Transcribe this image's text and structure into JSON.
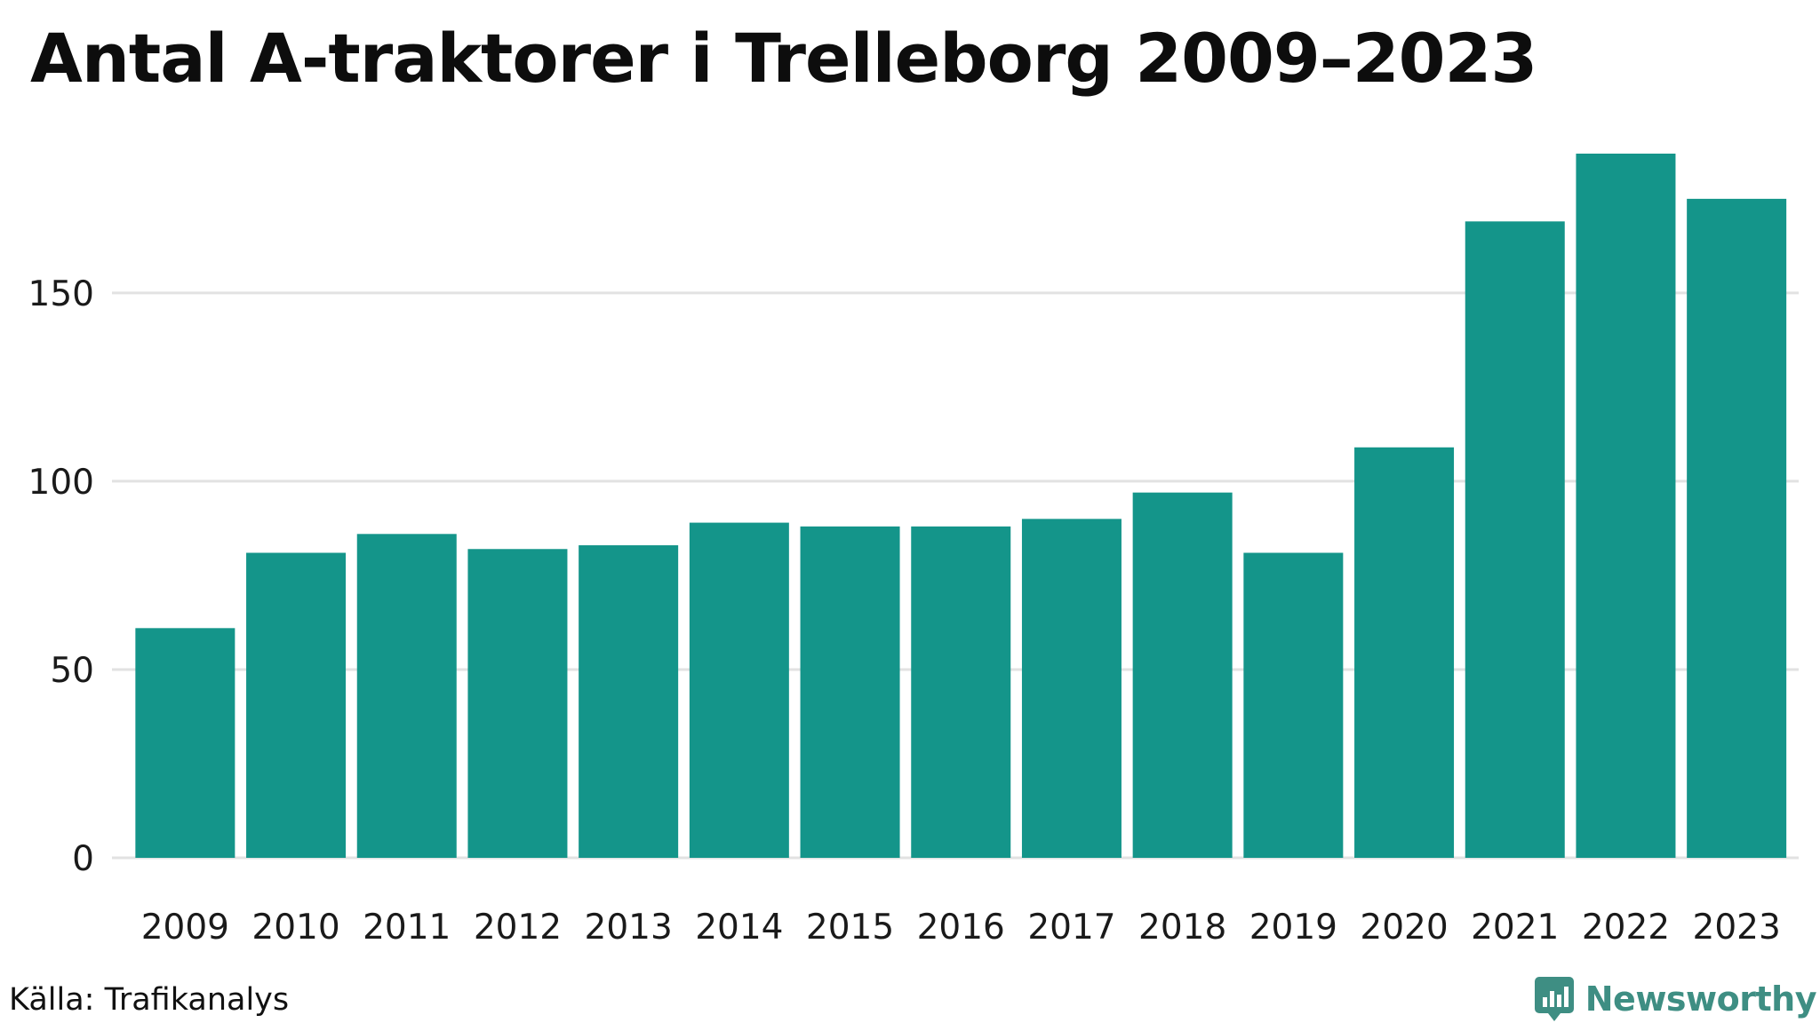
{
  "chart_data": {
    "type": "bar",
    "title": "Antal A-traktorer i Trelleborg 2009–2023",
    "xlabel": "",
    "ylabel": "",
    "categories": [
      "2009",
      "2010",
      "2011",
      "2012",
      "2013",
      "2014",
      "2015",
      "2016",
      "2017",
      "2018",
      "2019",
      "2020",
      "2021",
      "2022",
      "2023"
    ],
    "values": [
      61,
      81,
      86,
      82,
      83,
      89,
      88,
      88,
      90,
      97,
      81,
      109,
      169,
      187,
      175
    ],
    "ylim": [
      0,
      187
    ],
    "yticks": [
      0,
      50,
      100,
      150
    ],
    "grid": true,
    "bar_color": "#14958a",
    "grid_color": "#e2e2e2"
  },
  "footer": {
    "source": "Källa: Trafikanalys",
    "brand": "Newsworthy",
    "brand_color": "#3e8e83"
  }
}
